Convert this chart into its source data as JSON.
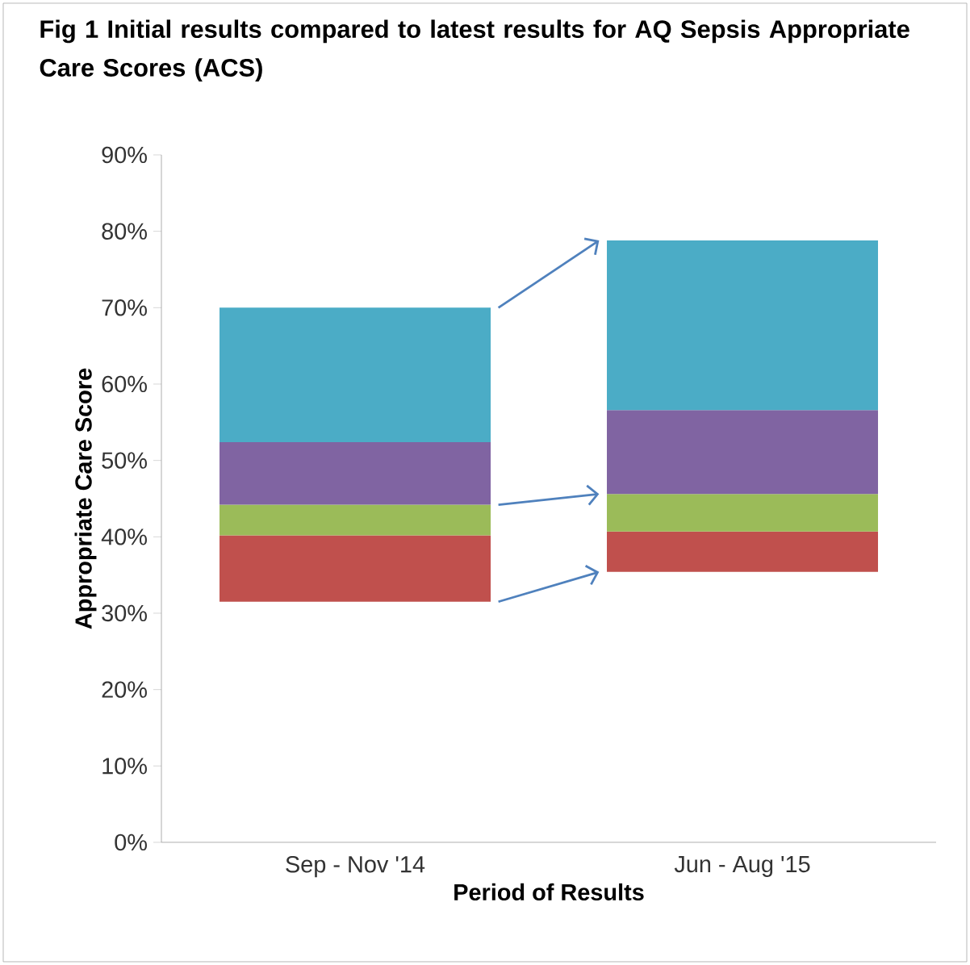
{
  "chart_data": {
    "type": "bar",
    "title": "Fig 1 Initial results compared to latest results for AQ Sepsis Appropriate Care Scores (ACS)",
    "xlabel": "Period of Results",
    "ylabel": "Appropriate Care Score",
    "categories": [
      "Sep - Nov '14",
      "Jun - Aug '15"
    ],
    "series": [
      {
        "color": "#c0504d",
        "base": [
          31.5,
          35.4
        ],
        "values": [
          8.7,
          5.3
        ]
      },
      {
        "color": "#9bbb59",
        "base": [
          40.2,
          40.7
        ],
        "values": [
          4.0,
          4.9
        ]
      },
      {
        "color": "#8064a2",
        "base": [
          44.2,
          45.6
        ],
        "values": [
          8.2,
          11.0
        ]
      },
      {
        "color": "#4bacc6",
        "base": [
          52.4,
          56.6
        ],
        "values": [
          17.6,
          22.2
        ]
      }
    ],
    "ylim": [
      0,
      90
    ],
    "yticks": [
      {
        "value": 0,
        "label": "0%"
      },
      {
        "value": 10,
        "label": "10%"
      },
      {
        "value": 20,
        "label": "20%"
      },
      {
        "value": 30,
        "label": "30%"
      },
      {
        "value": 40,
        "label": "40%"
      },
      {
        "value": 50,
        "label": "50%"
      },
      {
        "value": 60,
        "label": "60%"
      },
      {
        "value": 70,
        "label": "70%"
      },
      {
        "value": 80,
        "label": "80%"
      },
      {
        "value": 90,
        "label": "90%"
      }
    ]
  }
}
